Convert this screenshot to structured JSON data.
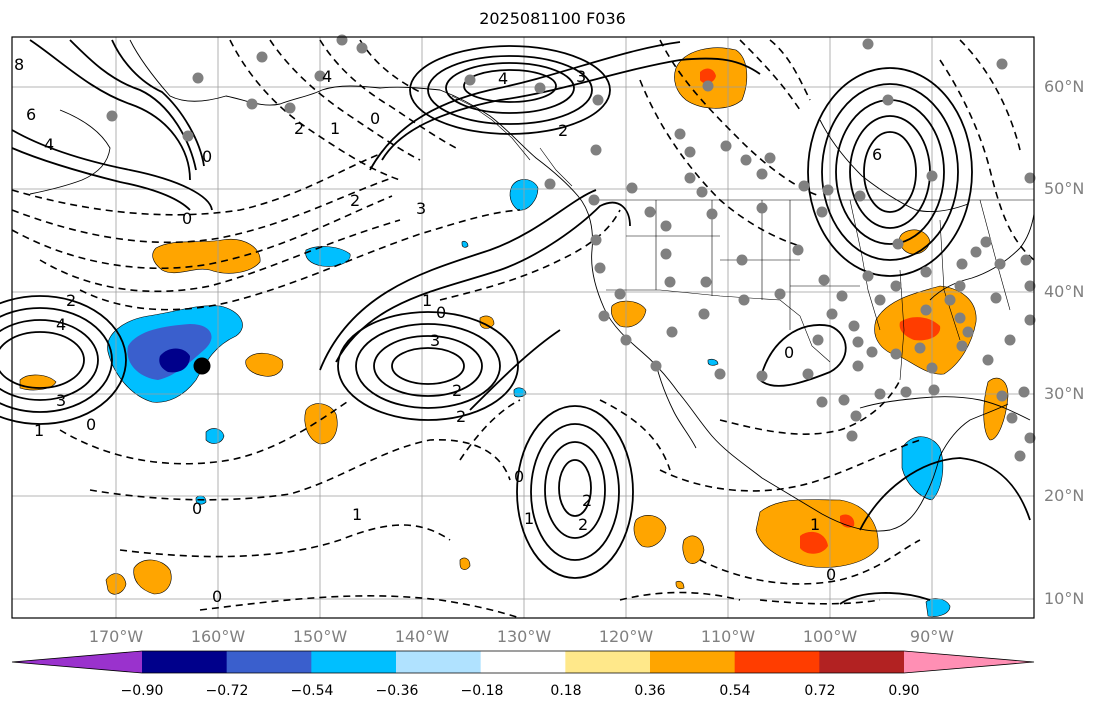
{
  "title": "2025081100 F036",
  "lat_labels": [
    "60°N",
    "50°N",
    "40°N",
    "30°N",
    "20°N",
    "10°N"
  ],
  "lon_labels": [
    "170°W",
    "160°W",
    "150°W",
    "140°W",
    "130°W",
    "120°W",
    "110°W",
    "100°W",
    "90°W"
  ],
  "colorbar": {
    "labels": [
      "−0.90",
      "−0.72",
      "−0.54",
      "−0.36",
      "−0.18",
      "0.18",
      "0.36",
      "0.54",
      "0.72",
      "0.90"
    ],
    "colors": [
      "#9a32cd",
      "#00008b",
      "#3a5fcd",
      "#00bfff",
      "#b0e2ff",
      "#ffffff",
      "#ffe88a",
      "#ffa500",
      "#ff3d00",
      "#b22222",
      "#ff8fb4"
    ]
  },
  "contour_labels": [
    "8",
    "6",
    "4",
    "4",
    "3",
    "2",
    "2",
    "2",
    "1",
    "0",
    "0",
    "0",
    "0",
    "3",
    "2",
    "4",
    "3",
    "1",
    "0",
    "1",
    "2",
    "3",
    "2",
    "1",
    "0",
    "2",
    "0",
    "1",
    "0",
    "6",
    "4",
    "1",
    "0",
    "0",
    "2"
  ]
}
